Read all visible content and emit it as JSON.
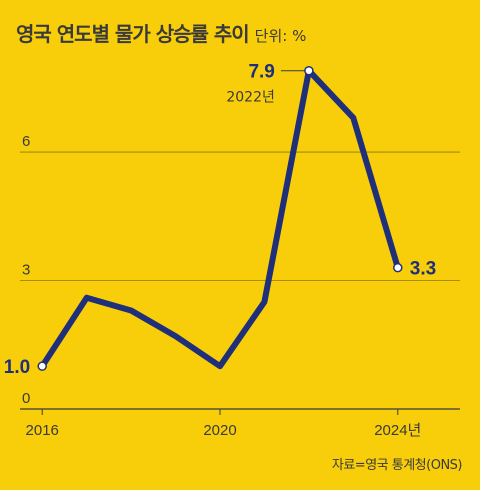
{
  "title": "영국 연도별 물가 상승률 추이",
  "unit_label": "단위: %",
  "source": "자료=영국 통계청(ONS)",
  "colors": {
    "background": "#F8CE0B",
    "line": "#1F2F7A",
    "grid": "#6B5A00",
    "text": "#3A3A3A"
  },
  "chart_data": {
    "type": "line",
    "title": "영국 연도별 물가 상승률 추이",
    "x": [
      2016,
      2017,
      2018,
      2019,
      2020,
      2021,
      2022,
      2023,
      2024
    ],
    "series": [
      {
        "values": [
          1.0,
          2.6,
          2.3,
          1.7,
          1.0,
          2.5,
          7.9,
          6.8,
          3.3
        ]
      }
    ],
    "xticks": [
      2016,
      2020,
      2024
    ],
    "xtick_labels": [
      "2016",
      "2020",
      "2024년"
    ],
    "yticks": [
      0,
      3,
      6
    ],
    "ylim": [
      0,
      8.5
    ],
    "xlim": [
      2015.5,
      2025.4
    ],
    "grid": true,
    "annotations": [
      {
        "x": 2016,
        "y": 1.0,
        "text": "1.0",
        "side": "left"
      },
      {
        "x": 2022,
        "y": 7.9,
        "text": "7.9",
        "sub": "2022년",
        "side": "left"
      },
      {
        "x": 2024,
        "y": 3.3,
        "text": "3.3",
        "side": "right"
      }
    ]
  }
}
